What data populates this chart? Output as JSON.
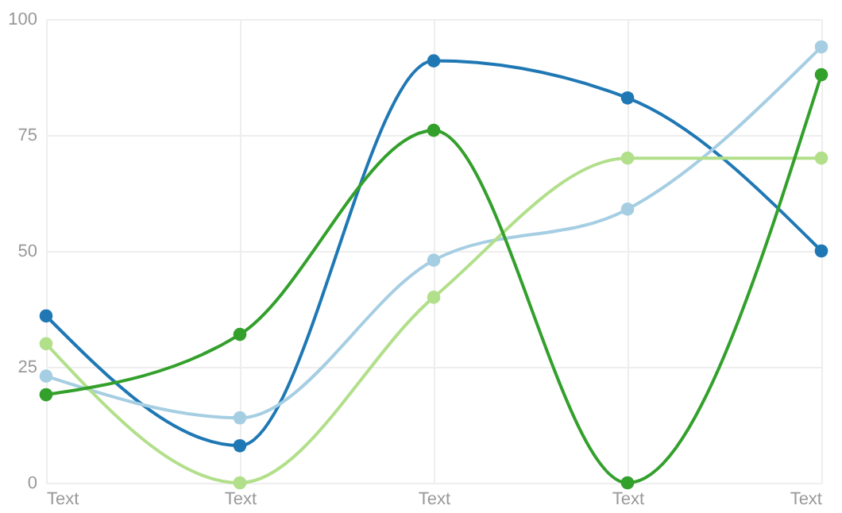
{
  "chart_data": {
    "type": "line",
    "categories": [
      "Text",
      "Text",
      "Text",
      "Text",
      "Text"
    ],
    "series": [
      {
        "color": "#1f78b4",
        "values": [
          36,
          8,
          91,
          83,
          50
        ]
      },
      {
        "color": "#a6cee3",
        "values": [
          23,
          14,
          48,
          59,
          94
        ]
      },
      {
        "color": "#b2df8a",
        "values": [
          30,
          0,
          40,
          70,
          70
        ]
      },
      {
        "color": "#33a02c",
        "values": [
          19,
          32,
          76,
          0,
          88
        ]
      }
    ],
    "ylim": [
      0,
      100
    ],
    "yticks": [
      0,
      25,
      50,
      75,
      100
    ],
    "grid": true,
    "marker": "circle",
    "line_style": "solid"
  }
}
